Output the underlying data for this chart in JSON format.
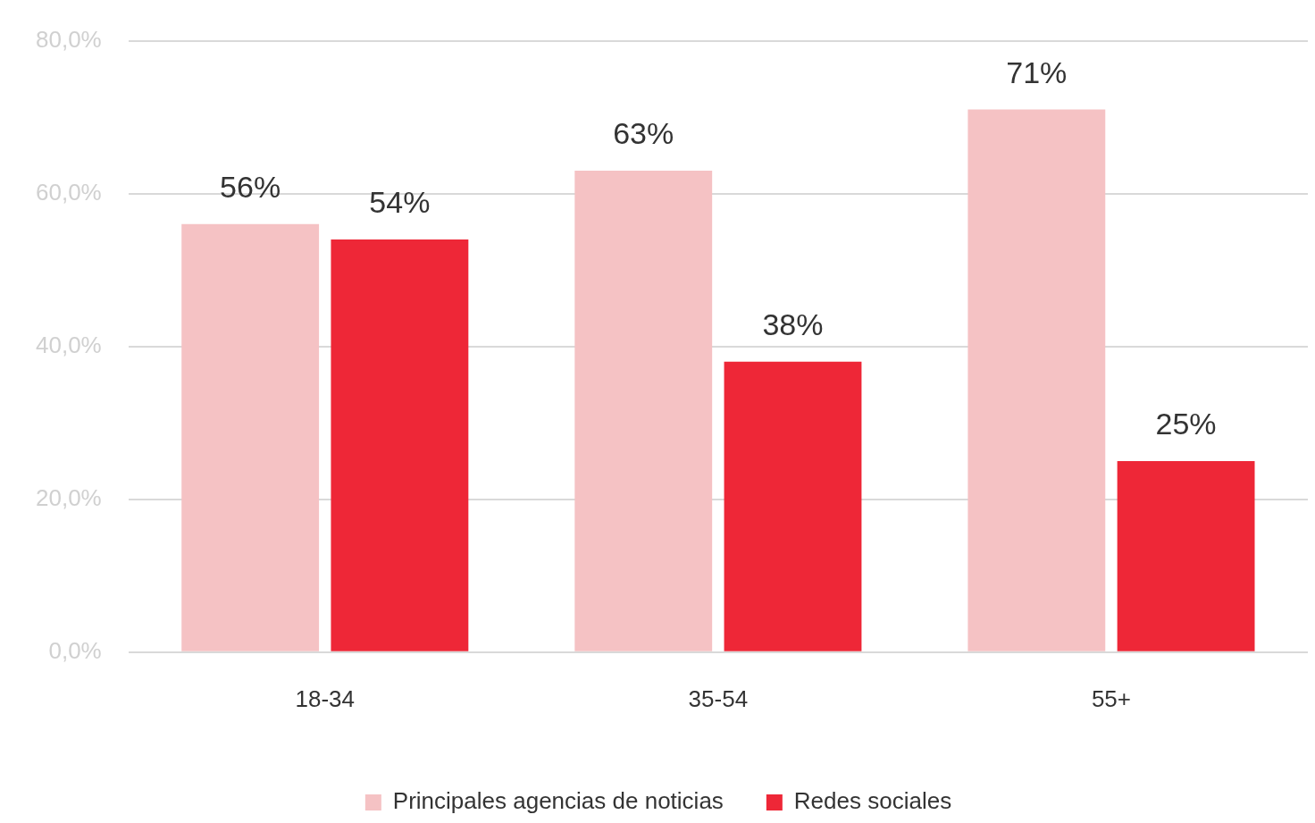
{
  "chart_data": {
    "type": "bar",
    "categories": [
      "18-34",
      "35-54",
      "55+"
    ],
    "series": [
      {
        "name": "Principales agencias de noticias",
        "color": "#f5c2c4",
        "values": [
          56,
          63,
          71
        ],
        "value_labels": [
          "56%",
          "63%",
          "71%"
        ]
      },
      {
        "name": "Redes sociales",
        "color": "#ee2737",
        "values": [
          54,
          38,
          25
        ],
        "value_labels": [
          "54%",
          "38%",
          "25%"
        ]
      }
    ],
    "ylim": [
      0,
      80
    ],
    "yticks": [
      {
        "value": 0,
        "label": "0,0%"
      },
      {
        "value": 20,
        "label": "20,0%"
      },
      {
        "value": 40,
        "label": "40,0%"
      },
      {
        "value": 60,
        "label": "60,0%"
      },
      {
        "value": 80,
        "label": "80,0%"
      }
    ],
    "grid": "y",
    "legend": "bottom"
  }
}
